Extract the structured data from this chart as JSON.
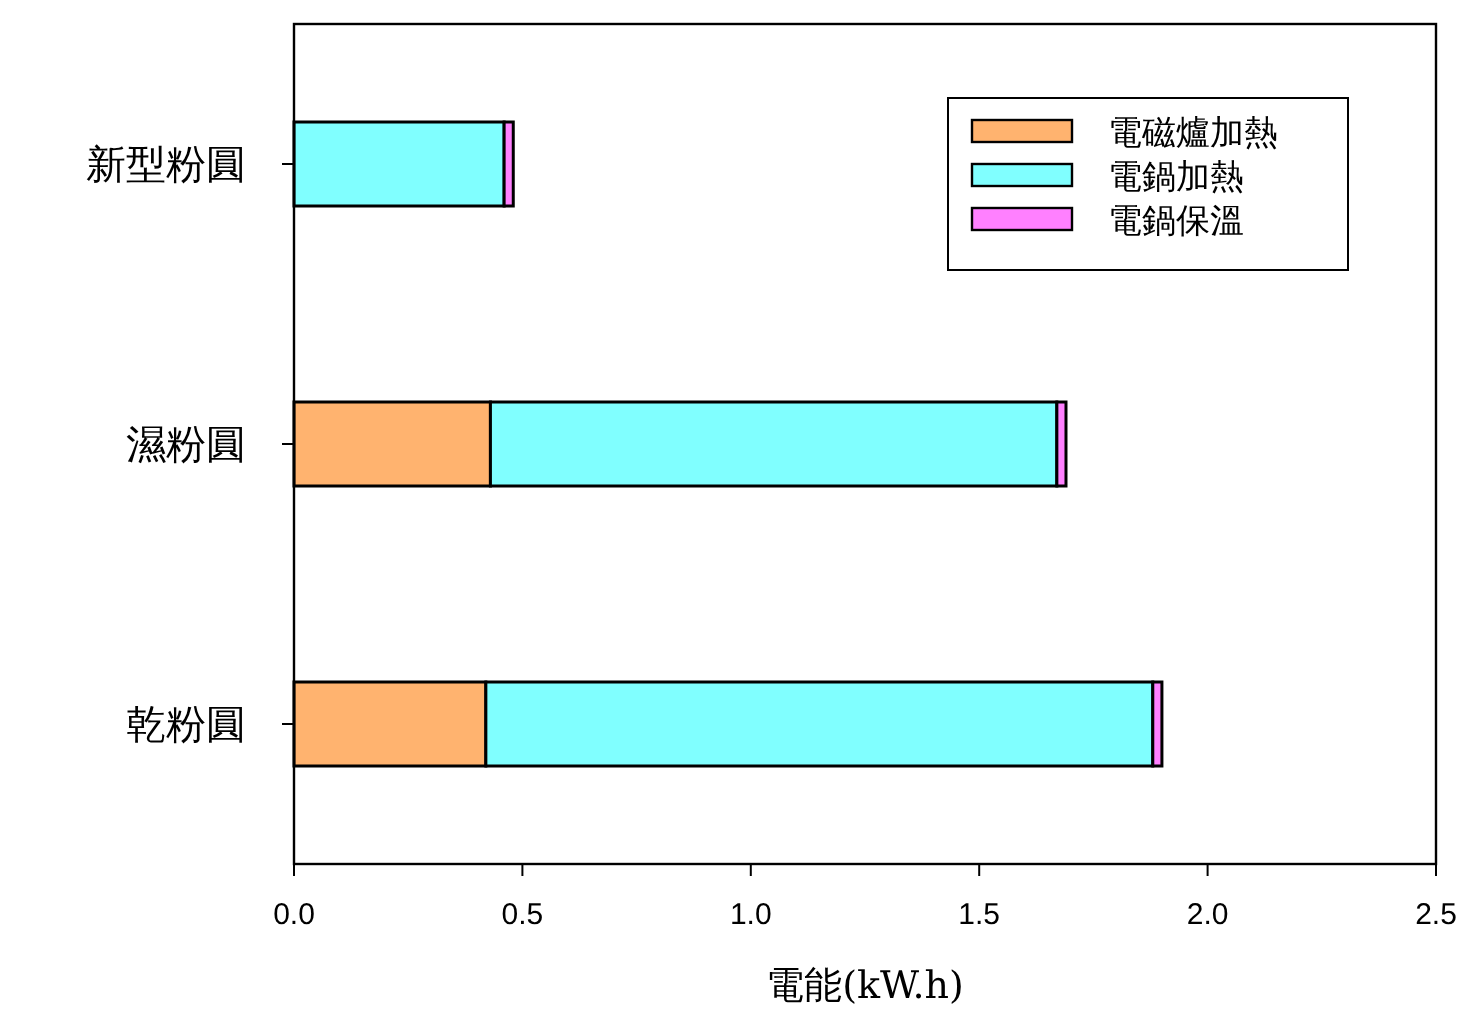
{
  "chart_data": {
    "type": "bar",
    "orientation": "horizontal",
    "stacked": true,
    "categories": [
      "新型粉圓",
      "濕粉圓",
      "乾粉圓"
    ],
    "series": [
      {
        "name": "電磁爐加熱",
        "color": "#ffb36f",
        "values": [
          null,
          0.43,
          0.42
        ]
      },
      {
        "name": "電鍋加熱",
        "color": "#80ffff",
        "values": [
          0.46,
          1.24,
          1.46
        ]
      },
      {
        "name": "電鍋保溫",
        "color": "#ff80ff",
        "values": [
          0.02,
          0.02,
          0.02
        ]
      }
    ],
    "xlabel": "電能(kW.h)",
    "xlim": [
      0,
      2.5
    ],
    "xticks": [
      {
        "value": 0,
        "label": "0.0"
      },
      0.5,
      {
        "value": 1,
        "label": "1.0"
      },
      1.5,
      {
        "value": 2,
        "label": "2.0"
      },
      2.5
    ],
    "legend": "top right"
  }
}
